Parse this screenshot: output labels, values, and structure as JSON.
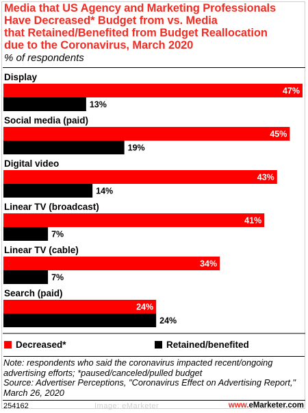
{
  "chart_data": {
    "type": "bar",
    "orientation": "horizontal",
    "title": "Media that US Agency and Marketing Professionals Have Decreased* Budget from vs. Media that Retained/Benefited from Budget Reallocation due to the Coronavirus, March 2020",
    "subtitle": "% of respondents",
    "categories": [
      "Display",
      "Social media (paid)",
      "Digital video",
      "Linear TV (broadcast)",
      "Linear TV (cable)",
      "Search (paid)"
    ],
    "series": [
      {
        "name": "Decreased*",
        "color": "#ff0000",
        "values": [
          47,
          45,
          43,
          41,
          34,
          24
        ],
        "labels": [
          "47%",
          "45%",
          "43%",
          "41%",
          "34%",
          "24%"
        ]
      },
      {
        "name": "Retained/benefited",
        "color": "#000000",
        "values": [
          13,
          19,
          14,
          7,
          7,
          24
        ],
        "labels": [
          "13%",
          "19%",
          "14%",
          "7%",
          "7%",
          "24%"
        ]
      }
    ],
    "xlim": [
      0,
      47
    ],
    "legend": "bottom"
  },
  "title_lines": [
    "Media that US Agency and Marketing Professionals",
    "Have Decreased* Budget from vs. Media",
    "that Retained/Benefited from Budget Reallocation",
    "due to the Coronavirus, March 2020"
  ],
  "subtitle": "% of respondents",
  "legend": {
    "decreased": "Decreased*",
    "retained": "Retained/benefited"
  },
  "note_lines": [
    "Note: respondents who said the coronavirus impacted recent/ongoing",
    "advertising efforts; *paused/canceled/pulled budget",
    "Source: Advertiser Perceptions, \"Coronavirus Effect on Advertising Report,\"",
    "March 26, 2020"
  ],
  "footer": {
    "id": "254162",
    "watermark": "Image: eMarketer",
    "logo_brand": "eMarketer",
    "logo_suffix": ".com"
  }
}
